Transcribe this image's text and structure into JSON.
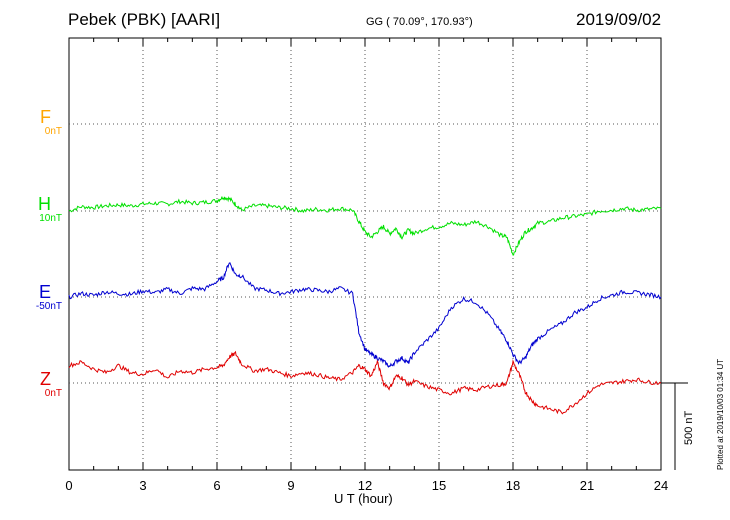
{
  "header": {
    "station": "Pebek (PBK)  [AARI]",
    "coords": "GG ( 70.09°, 170.93°)",
    "date": "2019/09/02"
  },
  "plotted_note": "Plotted at 2019/10/03 01:34 UT",
  "scale_label": "500 nT",
  "colors": {
    "F": "#ffa500",
    "H": "#00e000",
    "E": "#0000d0",
    "Z": "#e00000"
  },
  "chart_data": {
    "type": "line",
    "title": "Pebek (PBK)  [AARI]",
    "xlabel": "U T (hour)",
    "x_ticks": [
      "0",
      "3",
      "6",
      "9",
      "12",
      "15",
      "18",
      "21",
      "24"
    ],
    "xlim": [
      0,
      24
    ],
    "grid": true,
    "scale_bar": {
      "label": "500 nT",
      "value_nT": 500
    },
    "channels": [
      {
        "name": "F",
        "offset_label": "0nT",
        "color": "#ffa500"
      },
      {
        "name": "H",
        "offset_label": "10nT",
        "color": "#00e000"
      },
      {
        "name": "E",
        "offset_label": "-50nT",
        "color": "#0000d0"
      },
      {
        "name": "Z",
        "offset_label": "0nT",
        "color": "#e00000"
      }
    ],
    "series": [
      {
        "name": "H",
        "color": "#00e000",
        "x": [
          0,
          0.5,
          1,
          1.5,
          2,
          2.5,
          3,
          3.5,
          4,
          4.5,
          5,
          5.5,
          6,
          6.25,
          6.5,
          6.75,
          7,
          7.5,
          8,
          8.5,
          9,
          9.5,
          10,
          10.5,
          11,
          11.5,
          11.75,
          12,
          12.25,
          12.5,
          12.75,
          13,
          13.25,
          13.5,
          13.75,
          14,
          14.5,
          15,
          15.5,
          16,
          16.5,
          17,
          17.5,
          17.75,
          18,
          18.25,
          18.5,
          18.75,
          19,
          19.5,
          20,
          20.5,
          21,
          21.5,
          22,
          22.5,
          23,
          23.5,
          24
        ],
        "y": [
          0,
          25,
          20,
          30,
          35,
          30,
          40,
          45,
          40,
          55,
          45,
          50,
          60,
          80,
          70,
          40,
          5,
          30,
          30,
          20,
          15,
          0,
          10,
          5,
          15,
          5,
          -60,
          -120,
          -150,
          -120,
          -90,
          -130,
          -100,
          -150,
          -110,
          -130,
          -100,
          -90,
          -70,
          -80,
          -60,
          -90,
          -140,
          -150,
          -250,
          -180,
          -120,
          -100,
          -70,
          -60,
          -40,
          -30,
          -20,
          0,
          5,
          15,
          5,
          10,
          15
        ]
      },
      {
        "name": "E",
        "color": "#0000d0",
        "x": [
          0,
          0.5,
          1,
          1.5,
          2,
          2.5,
          3,
          3.5,
          4,
          4.5,
          5,
          5.5,
          6,
          6.25,
          6.5,
          6.75,
          7,
          7.5,
          8,
          8.5,
          9,
          9.5,
          10,
          10.5,
          11,
          11.5,
          11.75,
          12,
          12.25,
          12.5,
          12.75,
          13,
          13.25,
          13.5,
          13.75,
          14,
          14.5,
          15,
          15.5,
          16,
          16.5,
          17,
          17.5,
          17.75,
          18,
          18.25,
          18.5,
          18.75,
          19,
          19.5,
          20,
          20.5,
          21,
          21.5,
          22,
          22.5,
          23,
          23.5,
          24
        ],
        "y": [
          0,
          20,
          10,
          30,
          20,
          15,
          35,
          25,
          45,
          20,
          50,
          45,
          90,
          110,
          200,
          130,
          120,
          50,
          40,
          20,
          30,
          45,
          40,
          30,
          50,
          20,
          -200,
          -300,
          -330,
          -350,
          -370,
          -400,
          -370,
          -350,
          -380,
          -320,
          -250,
          -180,
          -60,
          -10,
          -30,
          -100,
          -200,
          -250,
          -330,
          -380,
          -350,
          -280,
          -240,
          -190,
          -150,
          -90,
          -60,
          -10,
          10,
          30,
          25,
          15,
          0
        ]
      },
      {
        "name": "Z",
        "color": "#e00000",
        "x": [
          0,
          0.5,
          1,
          1.5,
          2,
          2.5,
          3,
          3.5,
          4,
          4.5,
          5,
          5.5,
          6,
          6.25,
          6.5,
          6.75,
          7,
          7.5,
          8,
          8.5,
          9,
          9.5,
          10,
          10.5,
          11,
          11.5,
          11.75,
          12,
          12.25,
          12.5,
          12.75,
          13,
          13.25,
          13.5,
          13.75,
          14,
          14.5,
          15,
          15.5,
          16,
          16.5,
          17,
          17.5,
          17.75,
          18,
          18.25,
          18.5,
          18.75,
          19,
          19.5,
          20,
          20.5,
          21,
          21.5,
          22,
          22.5,
          23,
          23.5,
          24
        ],
        "y": [
          100,
          120,
          80,
          60,
          100,
          60,
          50,
          80,
          30,
          70,
          60,
          80,
          90,
          100,
          150,
          170,
          110,
          70,
          80,
          60,
          40,
          60,
          50,
          30,
          20,
          60,
          100,
          80,
          40,
          120,
          0,
          -30,
          40,
          30,
          -10,
          10,
          -20,
          -40,
          -60,
          -30,
          -40,
          -20,
          -10,
          0,
          120,
          50,
          -50,
          -100,
          -130,
          -150,
          -170,
          -120,
          -60,
          -10,
          0,
          10,
          20,
          5,
          0
        ]
      }
    ]
  }
}
